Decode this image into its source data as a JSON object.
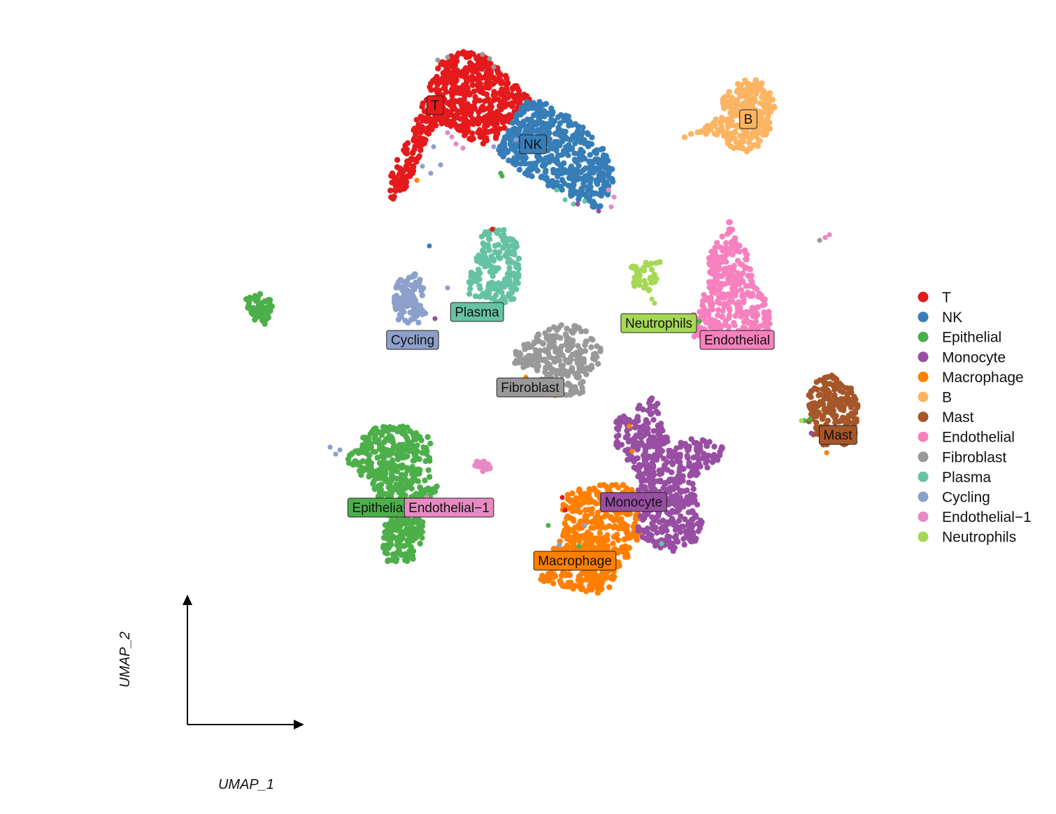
{
  "chart_data": {
    "type": "scatter",
    "xlabel": "UMAP_1",
    "ylabel": "UMAP_2",
    "grid": false,
    "legend_position": "right",
    "series": [
      {
        "name": "T",
        "color": "#E41A1C",
        "clusters": [
          {
            "label": "T",
            "center": [
              -2.2,
              8.0
            ]
          }
        ]
      },
      {
        "name": "NK",
        "color": "#377EB8",
        "clusters": [
          {
            "label": "NK",
            "center": [
              1.3,
              6.6
            ]
          }
        ]
      },
      {
        "name": "Epithelial",
        "color": "#4DAF4A",
        "clusters": [
          {
            "label": "Epithelial",
            "center": [
              -4.2,
              -6.4
            ]
          },
          {
            "label": "",
            "center": [
              -11.0,
              -0.4
            ]
          }
        ]
      },
      {
        "name": "Monocyte",
        "color": "#984EA3",
        "clusters": [
          {
            "label": "Monocyte",
            "center": [
              4.9,
              -6.2
            ]
          }
        ]
      },
      {
        "name": "Macrophage",
        "color": "#FF7F00",
        "clusters": [
          {
            "label": "Macrophage",
            "center": [
              2.8,
              -8.3
            ]
          }
        ]
      },
      {
        "name": "B",
        "color": "#FDB462",
        "clusters": [
          {
            "label": "B",
            "center": [
              9.0,
              7.5
            ]
          }
        ]
      },
      {
        "name": "Mast",
        "color": "#A65628",
        "clusters": [
          {
            "label": "Mast",
            "center": [
              12.2,
              -3.8
            ]
          }
        ]
      },
      {
        "name": "Endothelial",
        "color": "#F781BF",
        "clusters": [
          {
            "label": "Endothelial",
            "center": [
              8.6,
              -0.4
            ]
          }
        ]
      },
      {
        "name": "Fibroblast",
        "color": "#999999",
        "clusters": [
          {
            "label": "Fibroblast",
            "center": [
              1.2,
              -2.1
            ]
          }
        ]
      },
      {
        "name": "Plasma",
        "color": "#66C2A5",
        "clusters": [
          {
            "label": "Plasma",
            "center": [
              -0.7,
              0.6
            ]
          }
        ]
      },
      {
        "name": "Cycling",
        "color": "#8DA0CB",
        "clusters": [
          {
            "label": "Cycling",
            "center": [
              -3.0,
              -0.4
            ]
          }
        ]
      },
      {
        "name": "Endothelial−1",
        "color": "#E78AC3",
        "clusters": [
          {
            "label": "Endothelial−1",
            "center": [
              -1.7,
              -6.4
            ]
          }
        ]
      },
      {
        "name": "Neutrophils",
        "color": "#A6D854",
        "clusters": [
          {
            "label": "Neutrophils",
            "center": [
              5.8,
              0.2
            ]
          }
        ]
      }
    ]
  }
}
